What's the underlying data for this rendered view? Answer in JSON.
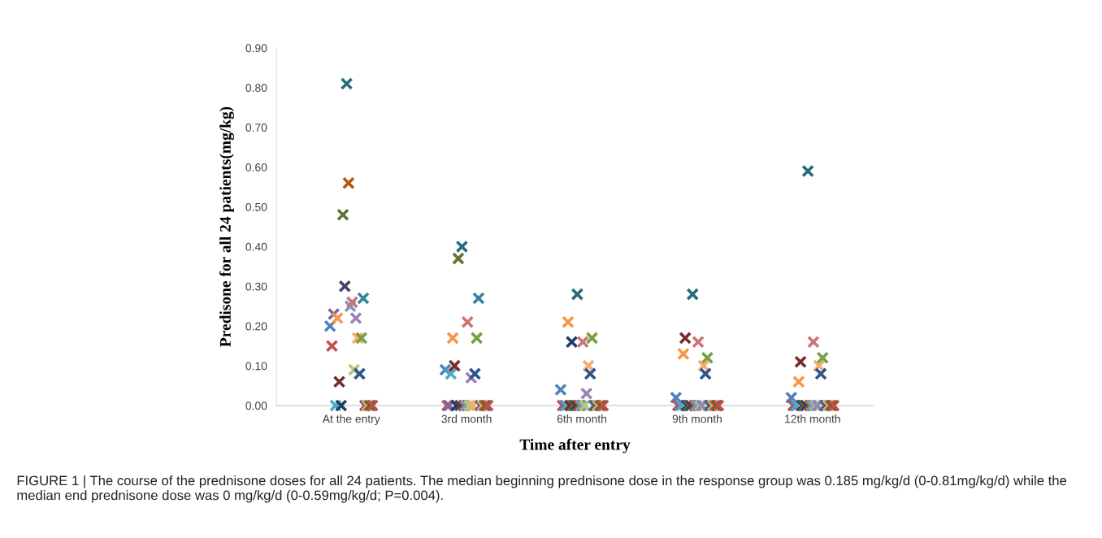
{
  "chart_data": {
    "type": "scatter",
    "xlabel": "Time after entry",
    "ylabel": "Predisone for all 24 patients(mg/kg)",
    "categories": [
      "At the entry",
      "3rd month",
      "6th month",
      "9th month",
      "12th month"
    ],
    "ylim": [
      0,
      0.9
    ],
    "yticks": [
      {
        "value": 0,
        "label": "0.00"
      },
      {
        "value": 0.1,
        "label": "0.10"
      },
      {
        "value": 0.2,
        "label": "0.20"
      },
      {
        "value": 0.3,
        "label": "0.30"
      },
      {
        "value": 0.4,
        "label": "0.40"
      },
      {
        "value": 0.5,
        "label": "0.50"
      },
      {
        "value": 0.6,
        "label": "0.60"
      },
      {
        "value": 0.7,
        "label": "0.70"
      },
      {
        "value": 0.8,
        "label": "0.80"
      },
      {
        "value": 0.9,
        "label": "0.90"
      }
    ],
    "grid": false,
    "marker": "cross",
    "series": [
      {
        "color": "#4f81bd",
        "values": [
          0.2,
          0.09,
          0.04,
          0.02,
          0.02
        ]
      },
      {
        "color": "#c0504d",
        "values": [
          0.15,
          0,
          0,
          0,
          0
        ]
      },
      {
        "color": "#8064a2",
        "values": [
          0.23,
          0,
          0,
          0,
          0
        ]
      },
      {
        "color": "#4bacc6",
        "values": [
          0,
          0.08,
          0,
          0,
          0
        ]
      },
      {
        "color": "#f79646",
        "values": [
          0.22,
          0.17,
          0.21,
          0.13,
          0.06
        ]
      },
      {
        "color": "#772c2a",
        "values": [
          0.06,
          0.1,
          0,
          0.17,
          0.11
        ]
      },
      {
        "color": "#1f3c64",
        "values": [
          0,
          0,
          0.16,
          0,
          0
        ]
      },
      {
        "color": "#5f7530",
        "values": [
          0.48,
          0.37,
          0,
          0,
          0
        ]
      },
      {
        "color": "#4d3b62",
        "values": [
          0.3,
          0,
          0,
          0,
          0
        ]
      },
      {
        "color": "#276a7c",
        "values": [
          0.81,
          0.4,
          0.28,
          0.28,
          0.59
        ]
      },
      {
        "color": "#b65708",
        "values": [
          0.56,
          0,
          0,
          0,
          0
        ]
      },
      {
        "color": "#729aca",
        "values": [
          0.25,
          0,
          0,
          0,
          0
        ]
      },
      {
        "color": "#cd7371",
        "values": [
          0.26,
          0.21,
          0.16,
          0.16,
          0.16
        ]
      },
      {
        "color": "#afc97a",
        "values": [
          0.09,
          0,
          0,
          0,
          0
        ]
      },
      {
        "color": "#9983b5",
        "values": [
          0.22,
          0.07,
          0.03,
          0,
          0
        ]
      },
      {
        "color": "#f9ab6b",
        "values": [
          0.17,
          0,
          0.1,
          0.1,
          0.1
        ]
      },
      {
        "color": "#2c5590",
        "values": [
          0.08,
          0.08,
          0.08,
          0.08,
          0.08
        ]
      },
      {
        "color": "#77a040",
        "values": [
          0.17,
          0.17,
          0.17,
          0.12,
          0.12
        ]
      },
      {
        "color": "#31859c",
        "values": [
          0.27,
          0.27,
          0,
          0,
          0
        ]
      },
      {
        "color": "#953735",
        "values": [
          0,
          0,
          0,
          0,
          0
        ]
      },
      {
        "color": "#93cddd",
        "values": [
          0,
          0,
          0,
          0,
          0
        ]
      },
      {
        "color": "#e46c0a",
        "values": [
          0,
          0,
          0,
          0,
          0
        ]
      },
      {
        "color": "#4f6228",
        "values": [
          0,
          0,
          0,
          0,
          0
        ]
      },
      {
        "color": "#c0504d",
        "values": [
          0,
          0,
          0,
          0,
          0
        ]
      }
    ],
    "annotations": [
      "FIGURE 1 | The course of the prednisone doses for all 24 patients. The median beginning prednisone dose in the response group was 0.185 mg/kg/d (0-0.81mg/kg/d) while the median end prednisone dose was 0 mg/kg/d (0-0.59mg/kg/d; P=0.004)."
    ]
  }
}
